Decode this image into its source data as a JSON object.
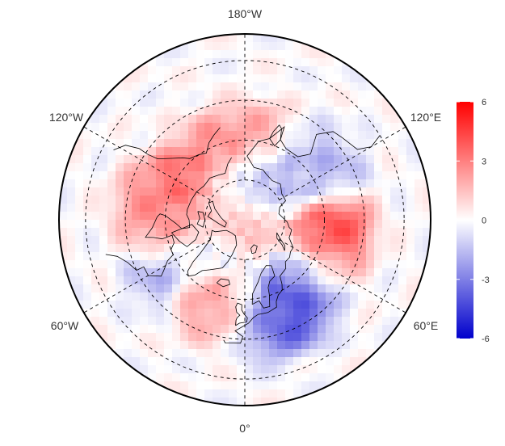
{
  "map": {
    "projection": "north-polar-stereographic",
    "longitude_labels": {
      "top": "180°W",
      "bottom": "0°",
      "upper_left": "120°W",
      "upper_right": "120°E",
      "lower_left": "60°W",
      "lower_right": "60°E"
    },
    "gridlines": "dashed"
  },
  "colorbar": {
    "ticks": [
      "6",
      "3",
      "0",
      "-3",
      "-6"
    ],
    "min": -6,
    "max": 6,
    "colors": {
      "high": "#ff0000",
      "mid": "#ffffff",
      "low": "#0000cc"
    }
  },
  "field": {
    "description_type": "gridded anomaly",
    "features": [
      {
        "lon": -160,
        "lat": 62,
        "value": 3.0
      },
      {
        "lon": -120,
        "lat": 63,
        "value": 4.0
      },
      {
        "lon": -100,
        "lat": 55,
        "value": 3.0
      },
      {
        "lon": 170,
        "lat": 60,
        "value": 2.5
      },
      {
        "lon": 150,
        "lat": 70,
        "value": -2.0
      },
      {
        "lon": 135,
        "lat": 60,
        "value": -1.5
      },
      {
        "lon": 120,
        "lat": 55,
        "value": -2.0
      },
      {
        "lon": 85,
        "lat": 57,
        "value": 5.0
      },
      {
        "lon": 65,
        "lat": 58,
        "value": 3.0
      },
      {
        "lon": 45,
        "lat": 58,
        "value": -3.5
      },
      {
        "lon": 25,
        "lat": 52,
        "value": -5.0
      },
      {
        "lon": 10,
        "lat": 52,
        "value": -3.0
      },
      {
        "lon": -10,
        "lat": 55,
        "value": 2.0
      },
      {
        "lon": -30,
        "lat": 58,
        "value": 3.0
      },
      {
        "lon": -55,
        "lat": 55,
        "value": -2.5
      },
      {
        "lon": -80,
        "lat": 60,
        "value": 2.5
      },
      {
        "lon": -90,
        "lat": 80,
        "value": 1.5
      },
      {
        "lon": 180,
        "lat": 78,
        "value": -2.0
      },
      {
        "lon": 0,
        "lat": 88,
        "value": 2.0
      },
      {
        "lon": -150,
        "lat": 78,
        "value": 1.0
      },
      {
        "lon": -40,
        "lat": 72,
        "value": -1.0
      }
    ]
  }
}
